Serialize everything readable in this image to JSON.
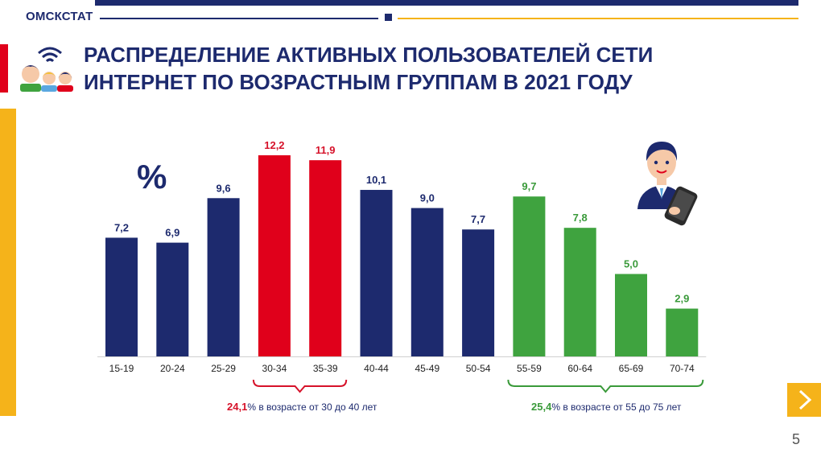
{
  "header": {
    "brand": "ОМСКСТАТ",
    "title_line1": "РАСПРЕДЕЛЕНИЕ АКТИВНЫХ ПОЛЬЗОВАТЕЛЕЙ СЕТИ",
    "title_line2": "ИНТЕРНЕТ ПО ВОЗРАСТНЫМ ГРУППАМ В 2021 ГОДУ"
  },
  "unit_label": "%",
  "chart_data": {
    "type": "bar",
    "title": "Распределение активных пользователей сети Интернет по возрастным группам в 2021 году",
    "ylabel": "%",
    "xlabel": "",
    "ylim": [
      0,
      13
    ],
    "grid": false,
    "categories": [
      "15-19",
      "20-24",
      "25-29",
      "30-34",
      "35-39",
      "40-44",
      "45-49",
      "50-54",
      "55-59",
      "60-64",
      "65-69",
      "70-74"
    ],
    "values": [
      7.2,
      6.9,
      9.6,
      12.2,
      11.9,
      10.1,
      9.0,
      7.7,
      9.7,
      7.8,
      5.0,
      2.9
    ],
    "value_labels": [
      "7,2",
      "6,9",
      "9,6",
      "12,2",
      "11,9",
      "10,1",
      "9,0",
      "7,7",
      "9,7",
      "7,8",
      "5,0",
      "2,9"
    ],
    "groups": [
      "base",
      "base",
      "base",
      "red",
      "red",
      "base",
      "base",
      "base",
      "green",
      "green",
      "green",
      "green"
    ]
  },
  "colors": {
    "base": "#1d2a6e",
    "red": "#e0001b",
    "green": "#3fa33f",
    "accent": "#f5b31a"
  },
  "annotations": {
    "red_value": "24,1",
    "red_text": "% в возрасте  от 30 до 40 лет",
    "green_value": "25,4",
    "green_text": "% в возрасте  от  55 до 75 лет"
  },
  "footer": {
    "page_number": "5"
  },
  "icons": {
    "next": "chevron-right-icon",
    "users": "wifi-users-icon",
    "person": "person-phone-icon"
  }
}
